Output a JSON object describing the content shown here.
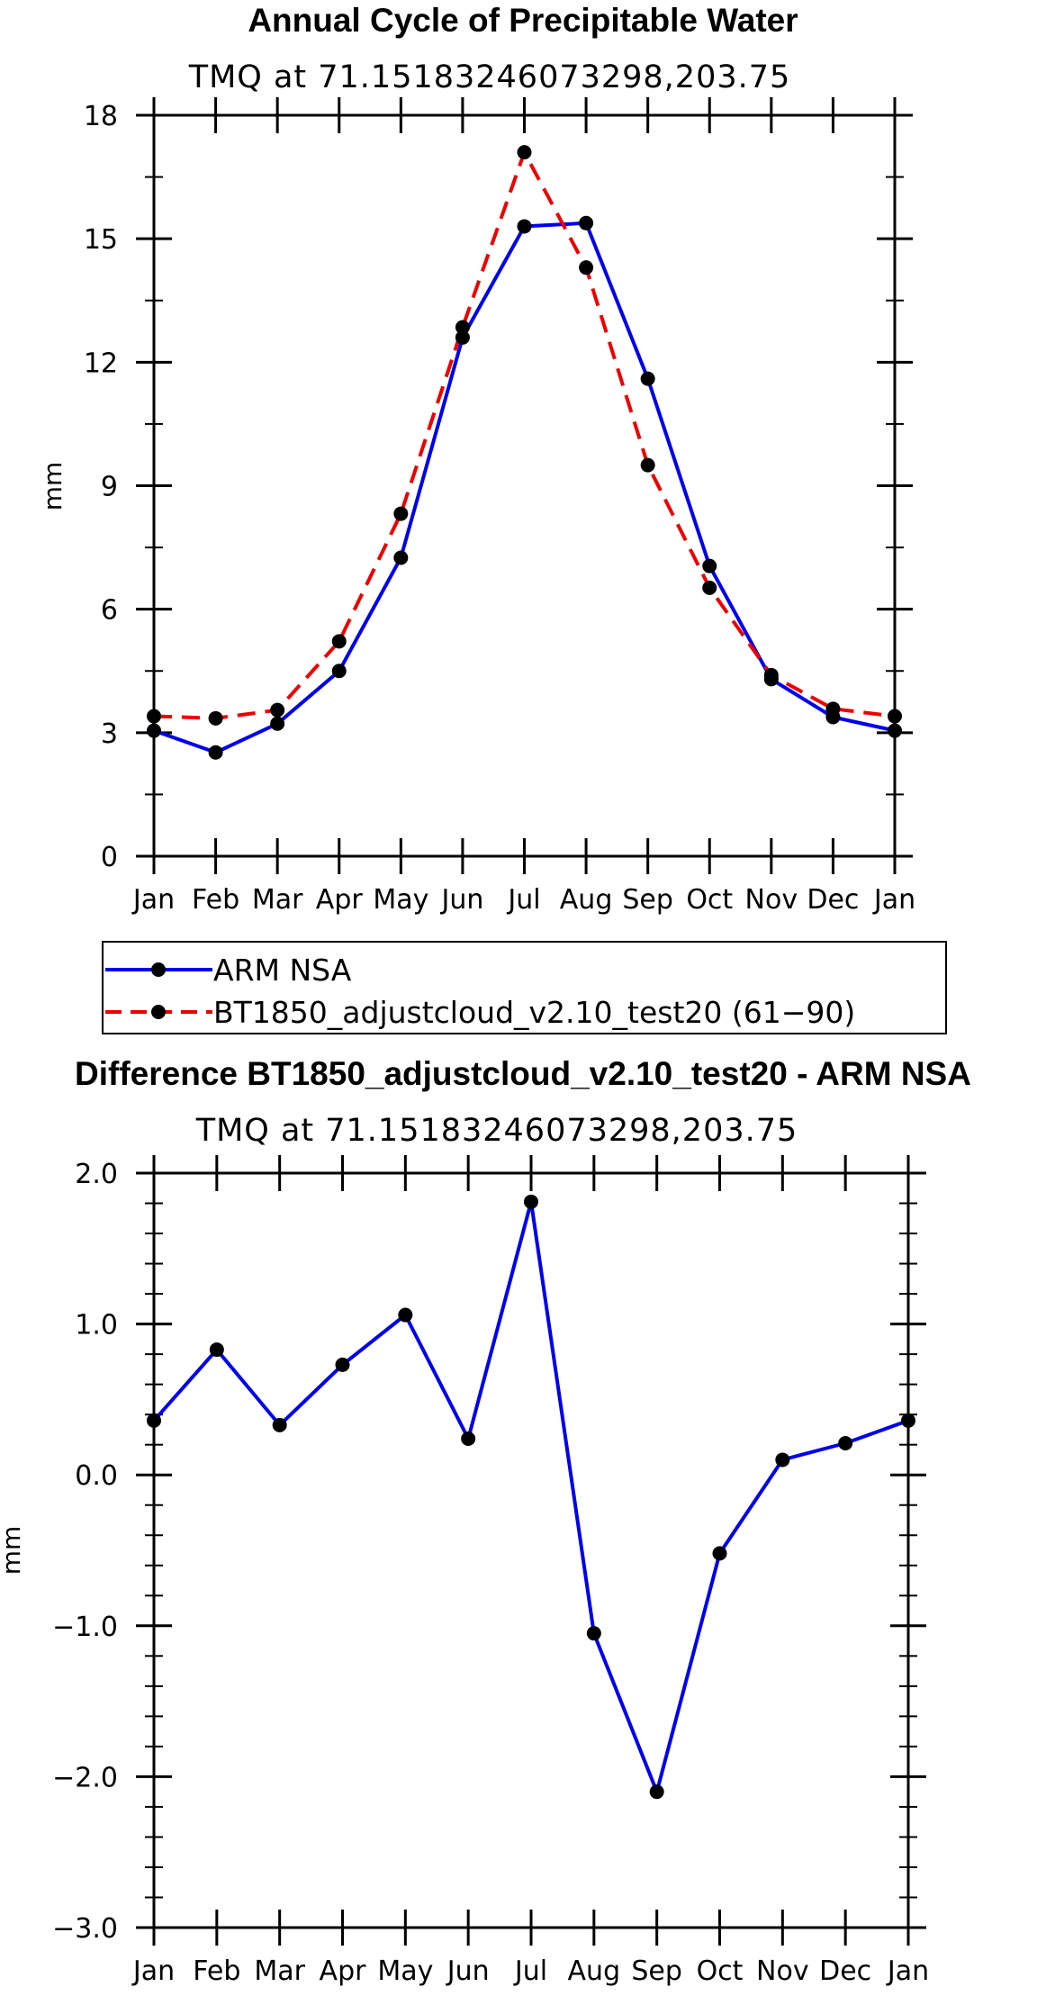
{
  "chart_data": [
    {
      "type": "line",
      "title": "Annual Cycle of Precipitable Water",
      "subtitle": "TMQ at 71.15183246073298,203.75",
      "xlabel": "",
      "ylabel": "mm",
      "categories": [
        "Jan",
        "Feb",
        "Mar",
        "Apr",
        "May",
        "Jun",
        "Jul",
        "Aug",
        "Sep",
        "Oct",
        "Nov",
        "Dec",
        "Jan"
      ],
      "ylim": [
        0,
        18
      ],
      "yticks": [
        0,
        3,
        6,
        9,
        12,
        15,
        18
      ],
      "ytick_labels": [
        "0",
        "3",
        "6",
        "9",
        "12",
        "15",
        "18"
      ],
      "series": [
        {
          "name": "ARM NSA",
          "color": "#0000ee",
          "dash": "solid",
          "values": [
            3.05,
            2.52,
            3.22,
            4.5,
            7.25,
            12.6,
            15.3,
            15.38,
            11.6,
            7.05,
            4.3,
            3.38,
            3.05
          ]
        },
        {
          "name": "BT1850_adjustcloud_v2.10_test20 (61−90)",
          "color": "#ee0000",
          "dash": "dashed",
          "values": [
            3.4,
            3.35,
            3.55,
            5.22,
            8.32,
            12.85,
            17.1,
            14.3,
            9.5,
            6.52,
            4.4,
            3.58,
            3.4
          ]
        }
      ],
      "legend": {
        "position": "below",
        "entries": [
          "ARM NSA",
          "BT1850_adjustcloud_v2.10_test20 (61−90)"
        ]
      }
    },
    {
      "type": "line",
      "title": "Difference BT1850_adjustcloud_v2.10_test20 - ARM NSA",
      "subtitle": "TMQ at 71.15183246073298,203.75",
      "xlabel": "",
      "ylabel": "mm",
      "categories": [
        "Jan",
        "Feb",
        "Mar",
        "Apr",
        "May",
        "Jun",
        "Jul",
        "Aug",
        "Sep",
        "Oct",
        "Nov",
        "Dec",
        "Jan"
      ],
      "ylim": [
        -3,
        2
      ],
      "yticks": [
        -3,
        -2,
        -1,
        0,
        1,
        2
      ],
      "ytick_labels": [
        "−3.0",
        "−2.0",
        "−1.0",
        "0.0",
        "1.0",
        "2.0"
      ],
      "series": [
        {
          "name": "Difference",
          "color": "#0000ee",
          "dash": "solid",
          "values": [
            0.36,
            0.83,
            0.33,
            0.73,
            1.06,
            0.24,
            1.81,
            -1.05,
            -2.1,
            -0.52,
            0.1,
            0.21,
            0.36
          ]
        }
      ]
    }
  ]
}
